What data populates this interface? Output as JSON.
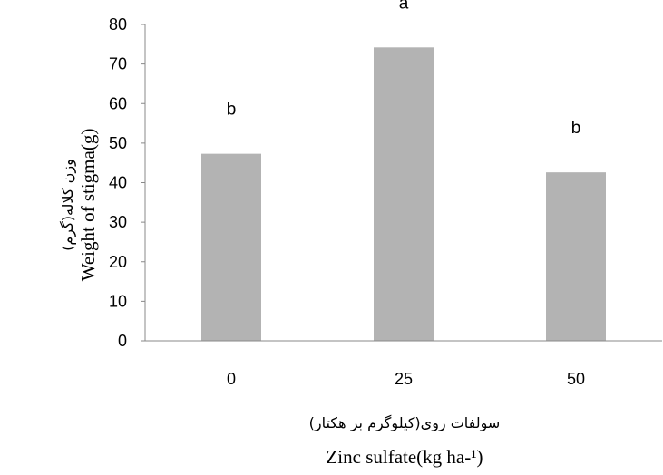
{
  "chart_data": {
    "type": "bar",
    "categories": [
      "0",
      "25",
      "50"
    ],
    "values": [
      47.3,
      74.2,
      42.6
    ],
    "significance_labels": [
      "b",
      "a",
      "b"
    ],
    "ylim": [
      0,
      80
    ],
    "yticks": [
      "0",
      "10",
      "20",
      "30",
      "40",
      "50",
      "60",
      "70",
      "80"
    ],
    "ylabel_en": "Weight of stigma(g)",
    "ylabel_fa": "وزن کلاله(گرم)",
    "xlabel_fa": "سولفات روی(کیلوگرم بر هکتار)",
    "xlabel_en": "Zinc sulfate(kg ha-¹)",
    "grid": false,
    "legend": "none",
    "colors": {
      "bar": "#b3b3b3",
      "axis": "#888888",
      "text": "#000000"
    }
  }
}
